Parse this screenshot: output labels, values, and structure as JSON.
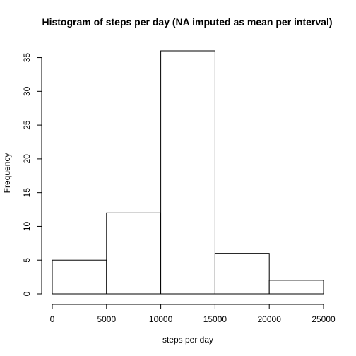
{
  "chart_data": {
    "type": "bar",
    "title": "Histogram of steps per day (NA imputed as mean per interval)",
    "xlabel": "steps per day",
    "ylabel": "Frequency",
    "bins": [
      {
        "start": 0,
        "end": 5000,
        "count": 5
      },
      {
        "start": 5000,
        "end": 10000,
        "count": 12
      },
      {
        "start": 10000,
        "end": 15000,
        "count": 36
      },
      {
        "start": 15000,
        "end": 20000,
        "count": 6
      },
      {
        "start": 20000,
        "end": 25000,
        "count": 2
      }
    ],
    "xlim": [
      0,
      25000
    ],
    "ylim": [
      0,
      36
    ],
    "x_ticks": [
      0,
      5000,
      10000,
      15000,
      20000,
      25000
    ],
    "y_ticks": [
      0,
      5,
      10,
      15,
      20,
      25,
      30,
      35
    ],
    "grid": false,
    "bar_fill": "#ffffff",
    "bar_stroke": "#000000"
  }
}
